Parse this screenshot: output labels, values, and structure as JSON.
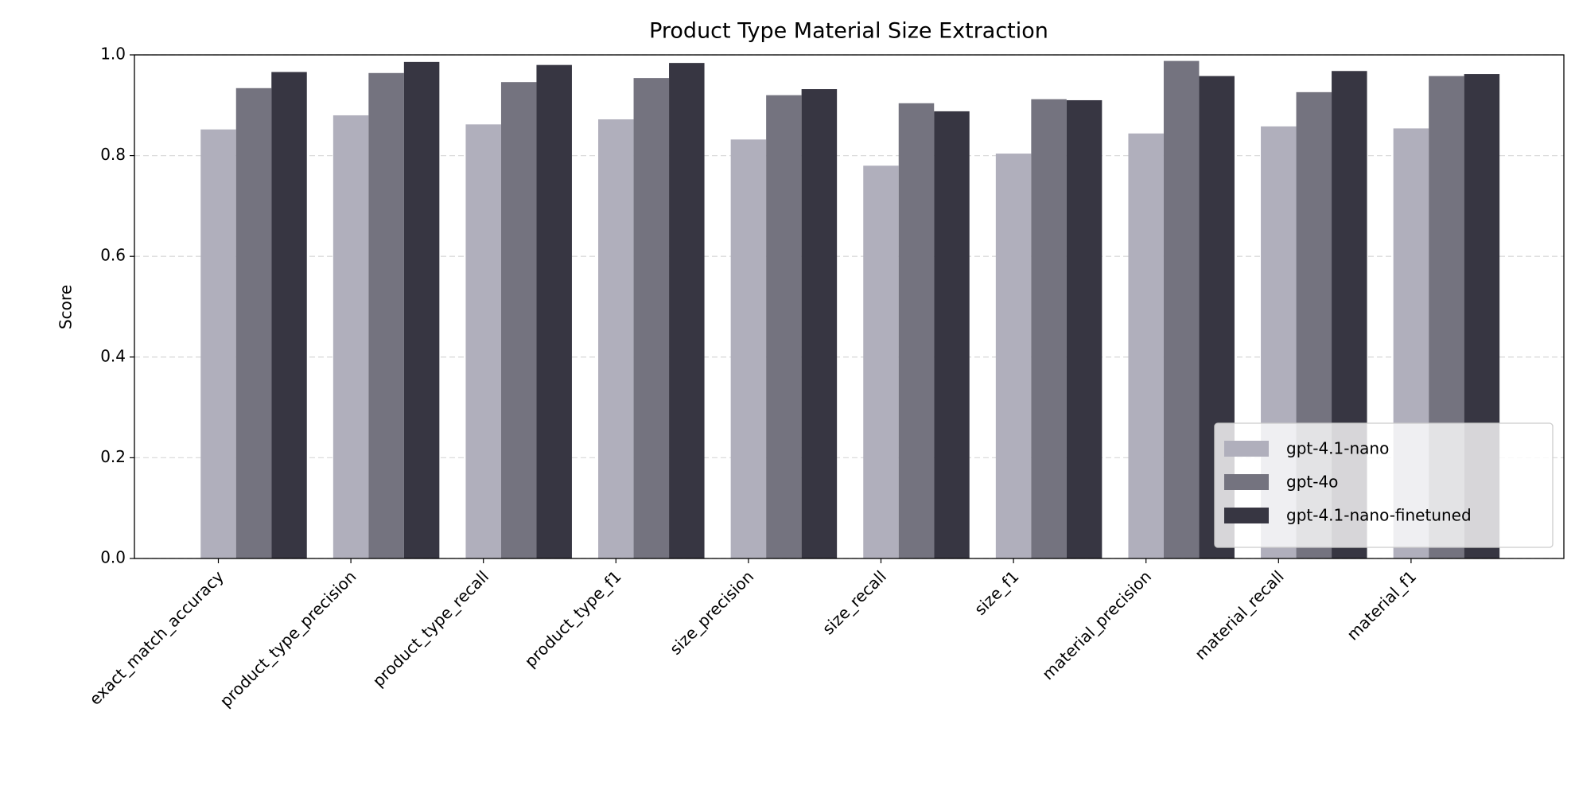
{
  "chart_data": {
    "type": "bar",
    "title": "Product Type Material Size Extraction",
    "y_label": "Score",
    "categories": [
      "exact_match_accuracy",
      "product_type_precision",
      "product_type_recall",
      "product_type_f1",
      "size_precision",
      "size_recall",
      "size_f1",
      "material_precision",
      "material_recall",
      "material_f1"
    ],
    "series": [
      {
        "name": "gpt-4.1-nano",
        "color": "#b0afbc",
        "values": [
          0.852,
          0.88,
          0.862,
          0.872,
          0.832,
          0.78,
          0.804,
          0.844,
          0.858,
          0.854
        ]
      },
      {
        "name": "gpt-4o",
        "color": "#74737f",
        "values": [
          0.934,
          0.964,
          0.946,
          0.954,
          0.92,
          0.904,
          0.912,
          0.988,
          0.926,
          0.958
        ]
      },
      {
        "name": "gpt-4.1-nano-finetuned",
        "color": "#373642",
        "values": [
          0.966,
          0.986,
          0.98,
          0.984,
          0.932,
          0.888,
          0.91,
          0.958,
          0.968,
          0.962
        ]
      }
    ],
    "ylim": [
      0,
      1
    ],
    "yticks": [
      {
        "value": 0,
        "label": "0.0"
      },
      {
        "value": 0.2,
        "label": "0.2"
      },
      {
        "value": 0.4,
        "label": "0.4"
      },
      {
        "value": 0.6,
        "label": "0.6"
      },
      {
        "value": 0.8,
        "label": "0.8"
      },
      {
        "value": 1,
        "label": "1.0"
      }
    ],
    "grid": true,
    "legend": "lower right"
  }
}
